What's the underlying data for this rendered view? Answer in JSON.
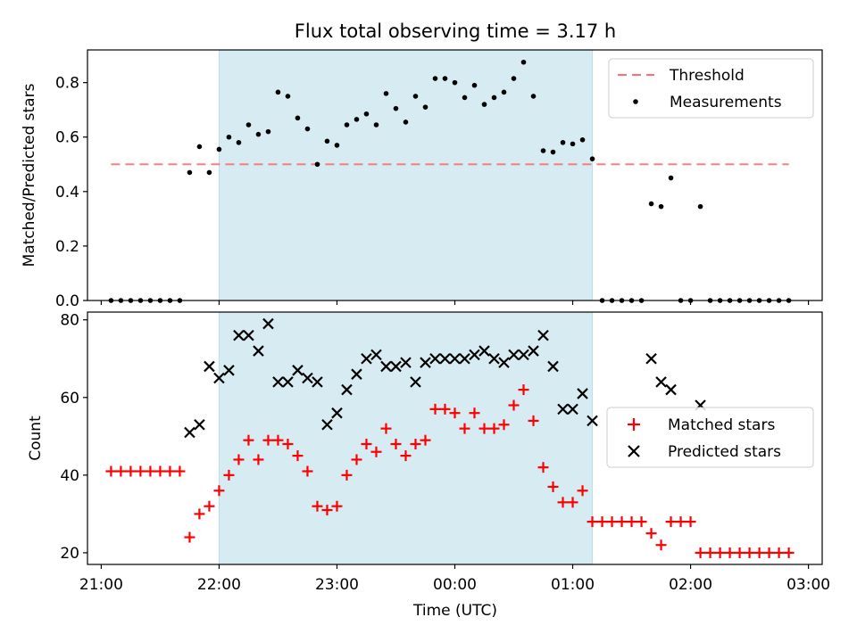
{
  "chart_data": [
    {
      "type": "scatter",
      "title": "Flux total observing time = 3.17 h",
      "xlabel": "",
      "ylabel": "Matched/Predicted stars",
      "xlim": [
        "20:53",
        "03:07"
      ],
      "ylim": [
        0,
        0.92
      ],
      "yticks": [
        "0.0",
        "0.2",
        "0.4",
        "0.6",
        "0.8"
      ],
      "highlight": {
        "x_start": "22:00",
        "x_end": "01:10",
        "color": "#add8e6"
      },
      "threshold": {
        "name": "Threshold",
        "y": 0.5,
        "x_start": "21:05",
        "x_end": "02:50",
        "color": "#ff6f6f"
      },
      "legend": {
        "placement": "top-right",
        "entries": [
          "Threshold",
          "Measurements"
        ]
      },
      "series": [
        {
          "name": "Measurements",
          "color": "#000000",
          "marker": "dot",
          "points": [
            [
              "21:05",
              0
            ],
            [
              "21:10",
              0
            ],
            [
              "21:15",
              0
            ],
            [
              "21:20",
              0
            ],
            [
              "21:25",
              0
            ],
            [
              "21:30",
              0
            ],
            [
              "21:35",
              0
            ],
            [
              "21:40",
              0
            ],
            [
              "21:45",
              0.47
            ],
            [
              "21:50",
              0.565
            ],
            [
              "21:55",
              0.47
            ],
            [
              "22:00",
              0.555
            ],
            [
              "22:05",
              0.6
            ],
            [
              "22:10",
              0.58
            ],
            [
              "22:15",
              0.645
            ],
            [
              "22:20",
              0.61
            ],
            [
              "22:25",
              0.62
            ],
            [
              "22:30",
              0.765
            ],
            [
              "22:35",
              0.75
            ],
            [
              "22:40",
              0.67
            ],
            [
              "22:45",
              0.63
            ],
            [
              "22:50",
              0.5
            ],
            [
              "22:55",
              0.585
            ],
            [
              "23:00",
              0.57
            ],
            [
              "23:05",
              0.645
            ],
            [
              "23:10",
              0.665
            ],
            [
              "23:15",
              0.685
            ],
            [
              "23:20",
              0.645
            ],
            [
              "23:25",
              0.76
            ],
            [
              "23:30",
              0.705
            ],
            [
              "23:35",
              0.655
            ],
            [
              "23:40",
              0.75
            ],
            [
              "23:45",
              0.71
            ],
            [
              "23:50",
              0.815
            ],
            [
              "23:55",
              0.815
            ],
            [
              "00:00",
              0.8
            ],
            [
              "00:05",
              0.745
            ],
            [
              "00:10",
              0.79
            ],
            [
              "00:15",
              0.72
            ],
            [
              "00:20",
              0.745
            ],
            [
              "00:25",
              0.765
            ],
            [
              "00:30",
              0.815
            ],
            [
              "00:35",
              0.875
            ],
            [
              "00:40",
              0.75
            ],
            [
              "00:45",
              0.55
            ],
            [
              "00:50",
              0.545
            ],
            [
              "00:55",
              0.58
            ],
            [
              "01:00",
              0.575
            ],
            [
              "01:05",
              0.59
            ],
            [
              "01:10",
              0.52
            ],
            [
              "01:15",
              0
            ],
            [
              "01:20",
              0
            ],
            [
              "01:25",
              0
            ],
            [
              "01:30",
              0
            ],
            [
              "01:35",
              0
            ],
            [
              "01:40",
              0.355
            ],
            [
              "01:45",
              0.345
            ],
            [
              "01:50",
              0.45
            ],
            [
              "01:55",
              0
            ],
            [
              "02:00",
              0
            ],
            [
              "02:05",
              0.345
            ],
            [
              "02:10",
              0
            ],
            [
              "02:15",
              0
            ],
            [
              "02:20",
              0
            ],
            [
              "02:25",
              0
            ],
            [
              "02:30",
              0
            ],
            [
              "02:35",
              0
            ],
            [
              "02:40",
              0
            ],
            [
              "02:45",
              0
            ],
            [
              "02:50",
              0
            ]
          ]
        }
      ]
    },
    {
      "type": "scatter",
      "title": "",
      "xlabel": "Time (UTC)",
      "ylabel": "Count",
      "xlim": [
        "20:53",
        "03:07"
      ],
      "ylim": [
        17,
        82
      ],
      "yticks": [
        "20",
        "40",
        "60",
        "80"
      ],
      "xticks": [
        "21:00",
        "22:00",
        "23:00",
        "00:00",
        "01:00",
        "02:00",
        "03:00"
      ],
      "highlight": {
        "x_start": "22:00",
        "x_end": "01:10",
        "color": "#add8e6"
      },
      "legend": {
        "placement": "center-right",
        "entries": [
          "Matched stars",
          "Predicted stars"
        ]
      },
      "series": [
        {
          "name": "Matched stars",
          "color": "#ff0000",
          "marker": "plus",
          "points": [
            [
              "21:05",
              41
            ],
            [
              "21:10",
              41
            ],
            [
              "21:15",
              41
            ],
            [
              "21:20",
              41
            ],
            [
              "21:25",
              41
            ],
            [
              "21:30",
              41
            ],
            [
              "21:35",
              41
            ],
            [
              "21:40",
              41
            ],
            [
              "21:45",
              24
            ],
            [
              "21:50",
              30
            ],
            [
              "21:55",
              32
            ],
            [
              "22:00",
              36
            ],
            [
              "22:05",
              40
            ],
            [
              "22:10",
              44
            ],
            [
              "22:15",
              49
            ],
            [
              "22:20",
              44
            ],
            [
              "22:25",
              49
            ],
            [
              "22:30",
              49
            ],
            [
              "22:35",
              48
            ],
            [
              "22:40",
              45
            ],
            [
              "22:45",
              41
            ],
            [
              "22:50",
              32
            ],
            [
              "22:55",
              31
            ],
            [
              "23:00",
              32
            ],
            [
              "23:05",
              40
            ],
            [
              "23:10",
              44
            ],
            [
              "23:15",
              48
            ],
            [
              "23:20",
              46
            ],
            [
              "23:25",
              52
            ],
            [
              "23:30",
              48
            ],
            [
              "23:35",
              45
            ],
            [
              "23:40",
              48
            ],
            [
              "23:45",
              49
            ],
            [
              "23:50",
              57
            ],
            [
              "23:55",
              57
            ],
            [
              "00:00",
              56
            ],
            [
              "00:05",
              52
            ],
            [
              "00:10",
              56
            ],
            [
              "00:15",
              52
            ],
            [
              "00:20",
              52
            ],
            [
              "00:25",
              53
            ],
            [
              "00:30",
              58
            ],
            [
              "00:35",
              62
            ],
            [
              "00:40",
              54
            ],
            [
              "00:45",
              42
            ],
            [
              "00:50",
              37
            ],
            [
              "00:55",
              33
            ],
            [
              "01:00",
              33
            ],
            [
              "01:05",
              36
            ],
            [
              "01:10",
              28
            ],
            [
              "01:15",
              28
            ],
            [
              "01:20",
              28
            ],
            [
              "01:25",
              28
            ],
            [
              "01:30",
              28
            ],
            [
              "01:35",
              28
            ],
            [
              "01:40",
              25
            ],
            [
              "01:45",
              22
            ],
            [
              "01:50",
              28
            ],
            [
              "01:55",
              28
            ],
            [
              "02:00",
              28
            ],
            [
              "02:05",
              20
            ],
            [
              "02:10",
              20
            ],
            [
              "02:15",
              20
            ],
            [
              "02:20",
              20
            ],
            [
              "02:25",
              20
            ],
            [
              "02:30",
              20
            ],
            [
              "02:35",
              20
            ],
            [
              "02:40",
              20
            ],
            [
              "02:45",
              20
            ],
            [
              "02:50",
              20
            ]
          ]
        },
        {
          "name": "Predicted stars",
          "color": "#000000",
          "marker": "cross",
          "points": [
            [
              "21:45",
              51
            ],
            [
              "21:50",
              53
            ],
            [
              "21:55",
              68
            ],
            [
              "22:00",
              65
            ],
            [
              "22:05",
              67
            ],
            [
              "22:10",
              76
            ],
            [
              "22:15",
              76
            ],
            [
              "22:20",
              72
            ],
            [
              "22:25",
              79
            ],
            [
              "22:30",
              64
            ],
            [
              "22:35",
              64
            ],
            [
              "22:40",
              67
            ],
            [
              "22:45",
              65
            ],
            [
              "22:50",
              64
            ],
            [
              "22:55",
              53
            ],
            [
              "23:00",
              56
            ],
            [
              "23:05",
              62
            ],
            [
              "23:10",
              66
            ],
            [
              "23:15",
              70
            ],
            [
              "23:20",
              71
            ],
            [
              "23:25",
              68
            ],
            [
              "23:30",
              68
            ],
            [
              "23:35",
              69
            ],
            [
              "23:40",
              64
            ],
            [
              "23:45",
              69
            ],
            [
              "23:50",
              70
            ],
            [
              "23:55",
              70
            ],
            [
              "00:00",
              70
            ],
            [
              "00:05",
              70
            ],
            [
              "00:10",
              71
            ],
            [
              "00:15",
              72
            ],
            [
              "00:20",
              70
            ],
            [
              "00:25",
              69
            ],
            [
              "00:30",
              71
            ],
            [
              "00:35",
              71
            ],
            [
              "00:40",
              72
            ],
            [
              "00:45",
              76
            ],
            [
              "00:50",
              68
            ],
            [
              "00:55",
              57
            ],
            [
              "01:00",
              57
            ],
            [
              "01:05",
              61
            ],
            [
              "01:10",
              54
            ],
            [
              "01:40",
              70
            ],
            [
              "01:45",
              64
            ],
            [
              "01:50",
              62
            ],
            [
              "02:05",
              58
            ]
          ]
        }
      ]
    }
  ]
}
